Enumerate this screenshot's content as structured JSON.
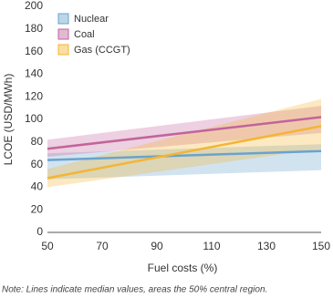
{
  "chart_data": {
    "type": "line-band",
    "xlabel": "Fuel costs (%)",
    "ylabel": "LCOE (USD/MWh)",
    "note": "Note: Lines indicate median values, areas the 50% central region.",
    "x": [
      50,
      150
    ],
    "series": [
      {
        "name": "Nuclear",
        "color": "#6aa3cc",
        "values": [
          64,
          72
        ],
        "lower": [
          47,
          55
        ],
        "upper": [
          70,
          78
        ]
      },
      {
        "name": "Coal",
        "color": "#c2649a",
        "values": [
          74,
          102
        ],
        "lower": [
          67,
          88
        ],
        "upper": [
          82,
          112
        ]
      },
      {
        "name": "Gas (CCGT)",
        "color": "#f4b532",
        "values": [
          48,
          94
        ],
        "lower": [
          40,
          74
        ],
        "upper": [
          56,
          118
        ]
      }
    ],
    "xlim": [
      50,
      150
    ],
    "xticks": [
      50,
      70,
      90,
      110,
      130,
      150
    ],
    "ylim": [
      0,
      200
    ],
    "yticks": [
      0,
      20,
      40,
      60,
      80,
      100,
      120,
      140,
      160,
      180,
      200
    ],
    "legend": "upper-left"
  }
}
